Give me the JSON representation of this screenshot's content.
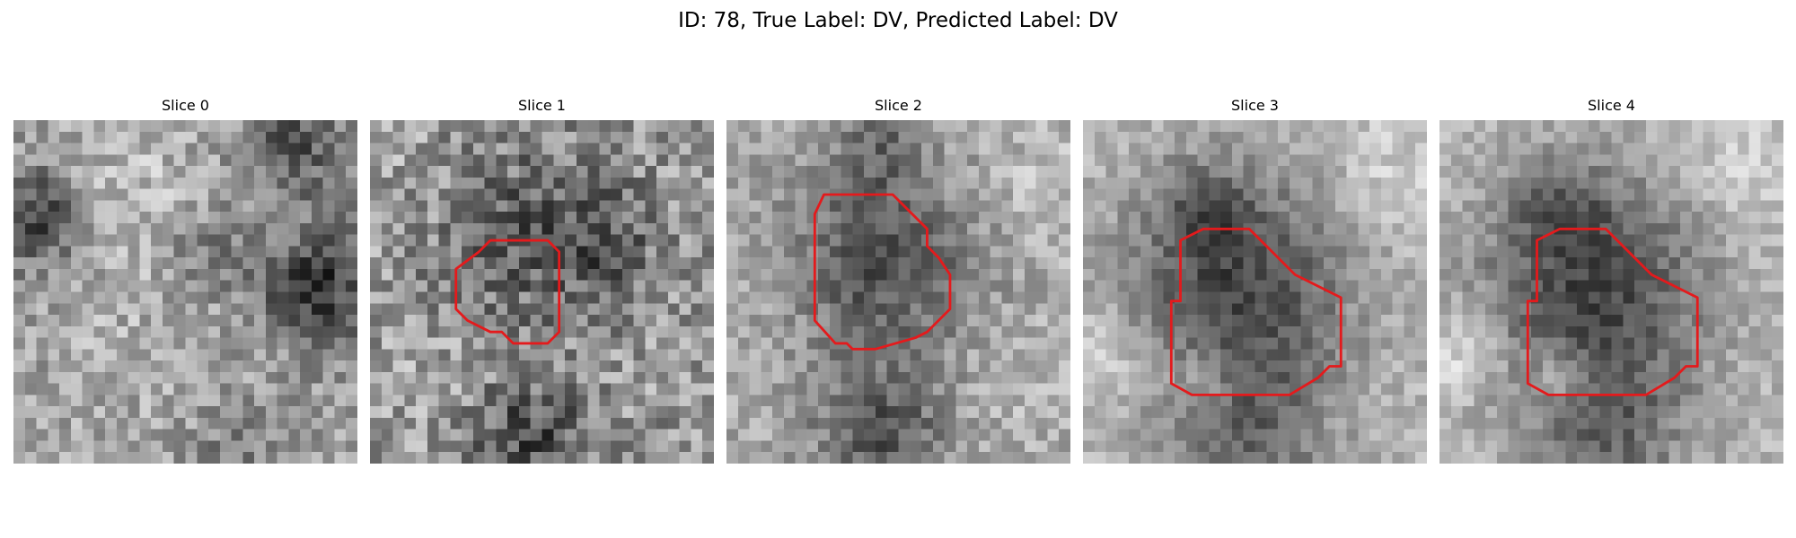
{
  "figure": {
    "title": "ID: 78, True Label: DV, Predicted Label: DV"
  },
  "panels": [
    {
      "title": "Slice 0",
      "has_contour": false
    },
    {
      "title": "Slice 1",
      "has_contour": true
    },
    {
      "title": "Slice 2",
      "has_contour": true
    },
    {
      "title": "Slice 3",
      "has_contour": true
    },
    {
      "title": "Slice 4",
      "has_contour": true
    }
  ],
  "style": {
    "contour_color": "#e41a1c",
    "colormap": "grayscale"
  }
}
